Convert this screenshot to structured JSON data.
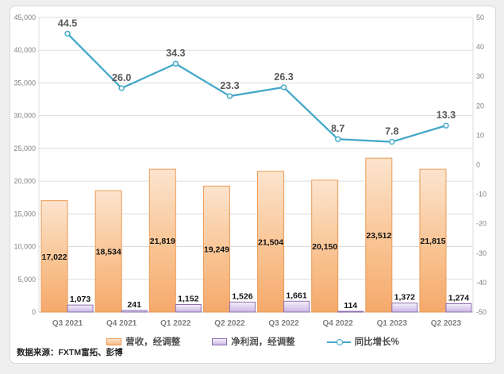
{
  "source_note": "数据来源：FXTM富拓、彭博",
  "legend": {
    "revenue_label": "营收，经调整",
    "profit_label": "净利润，经调整",
    "growth_label": "同比增长%"
  },
  "colors": {
    "revenue_fill_top": "#fce4ce",
    "revenue_fill_bottom": "#f5a96b",
    "revenue_border": "#ec9a55",
    "profit_fill_top": "#f5f0fa",
    "profit_fill_bottom": "#c9b6e4",
    "profit_border": "#8e6faf",
    "growth_line": "#45a8c8",
    "gridline": "#dcdcdc",
    "axis_line": "#bfbfbf",
    "page_background": "#efefef",
    "card_background": "#ffffff"
  },
  "chart_data": {
    "type": "combo-clustered-bar-line",
    "categories": [
      "Q3 2021",
      "Q4 2021",
      "Q1 2022",
      "Q2 2022",
      "Q3 2022",
      "Q4 2022",
      "Q1 2023",
      "Q2 2023"
    ],
    "series": [
      {
        "name": "营收，经调整",
        "type": "bar",
        "axis": "left",
        "values": [
          17022,
          18534,
          21819,
          19249,
          21504,
          20150,
          23512,
          21815
        ],
        "labels": [
          "17,022",
          "18,534",
          "21,819",
          "19,249",
          "21,504",
          "20,150",
          "23,512",
          "21,815"
        ]
      },
      {
        "name": "净利润，经调整",
        "type": "bar",
        "axis": "left",
        "values": [
          1073,
          241,
          1152,
          1526,
          1661,
          114,
          1372,
          1274
        ],
        "labels": [
          "1,073",
          "241",
          "1,152",
          "1,526",
          "1,661",
          "114",
          "1,372",
          "1,274"
        ]
      },
      {
        "name": "同比增长%",
        "type": "line",
        "axis": "right",
        "values": [
          44.5,
          26.0,
          34.3,
          23.3,
          26.3,
          8.7,
          7.8,
          13.3
        ],
        "labels": [
          "44.5",
          "26.0",
          "34.3",
          "23.3",
          "26.3",
          "8.7",
          "7.8",
          "13.3"
        ]
      }
    ],
    "left_axis": {
      "min": 0,
      "max": 45000,
      "step": 5000,
      "tick_labels": [
        "45,000",
        "40,000",
        "35,000",
        "30,000",
        "25,000",
        "20,000",
        "15,000",
        "10,000",
        "5,000",
        "0"
      ]
    },
    "right_axis": {
      "min": -50,
      "max": 50,
      "step": 10,
      "tick_labels": [
        "50",
        "40",
        "30",
        "20",
        "10",
        "0",
        "-10",
        "-20",
        "-30",
        "-40",
        "-50"
      ]
    },
    "grid": "horizontal",
    "legend_position": "bottom"
  }
}
